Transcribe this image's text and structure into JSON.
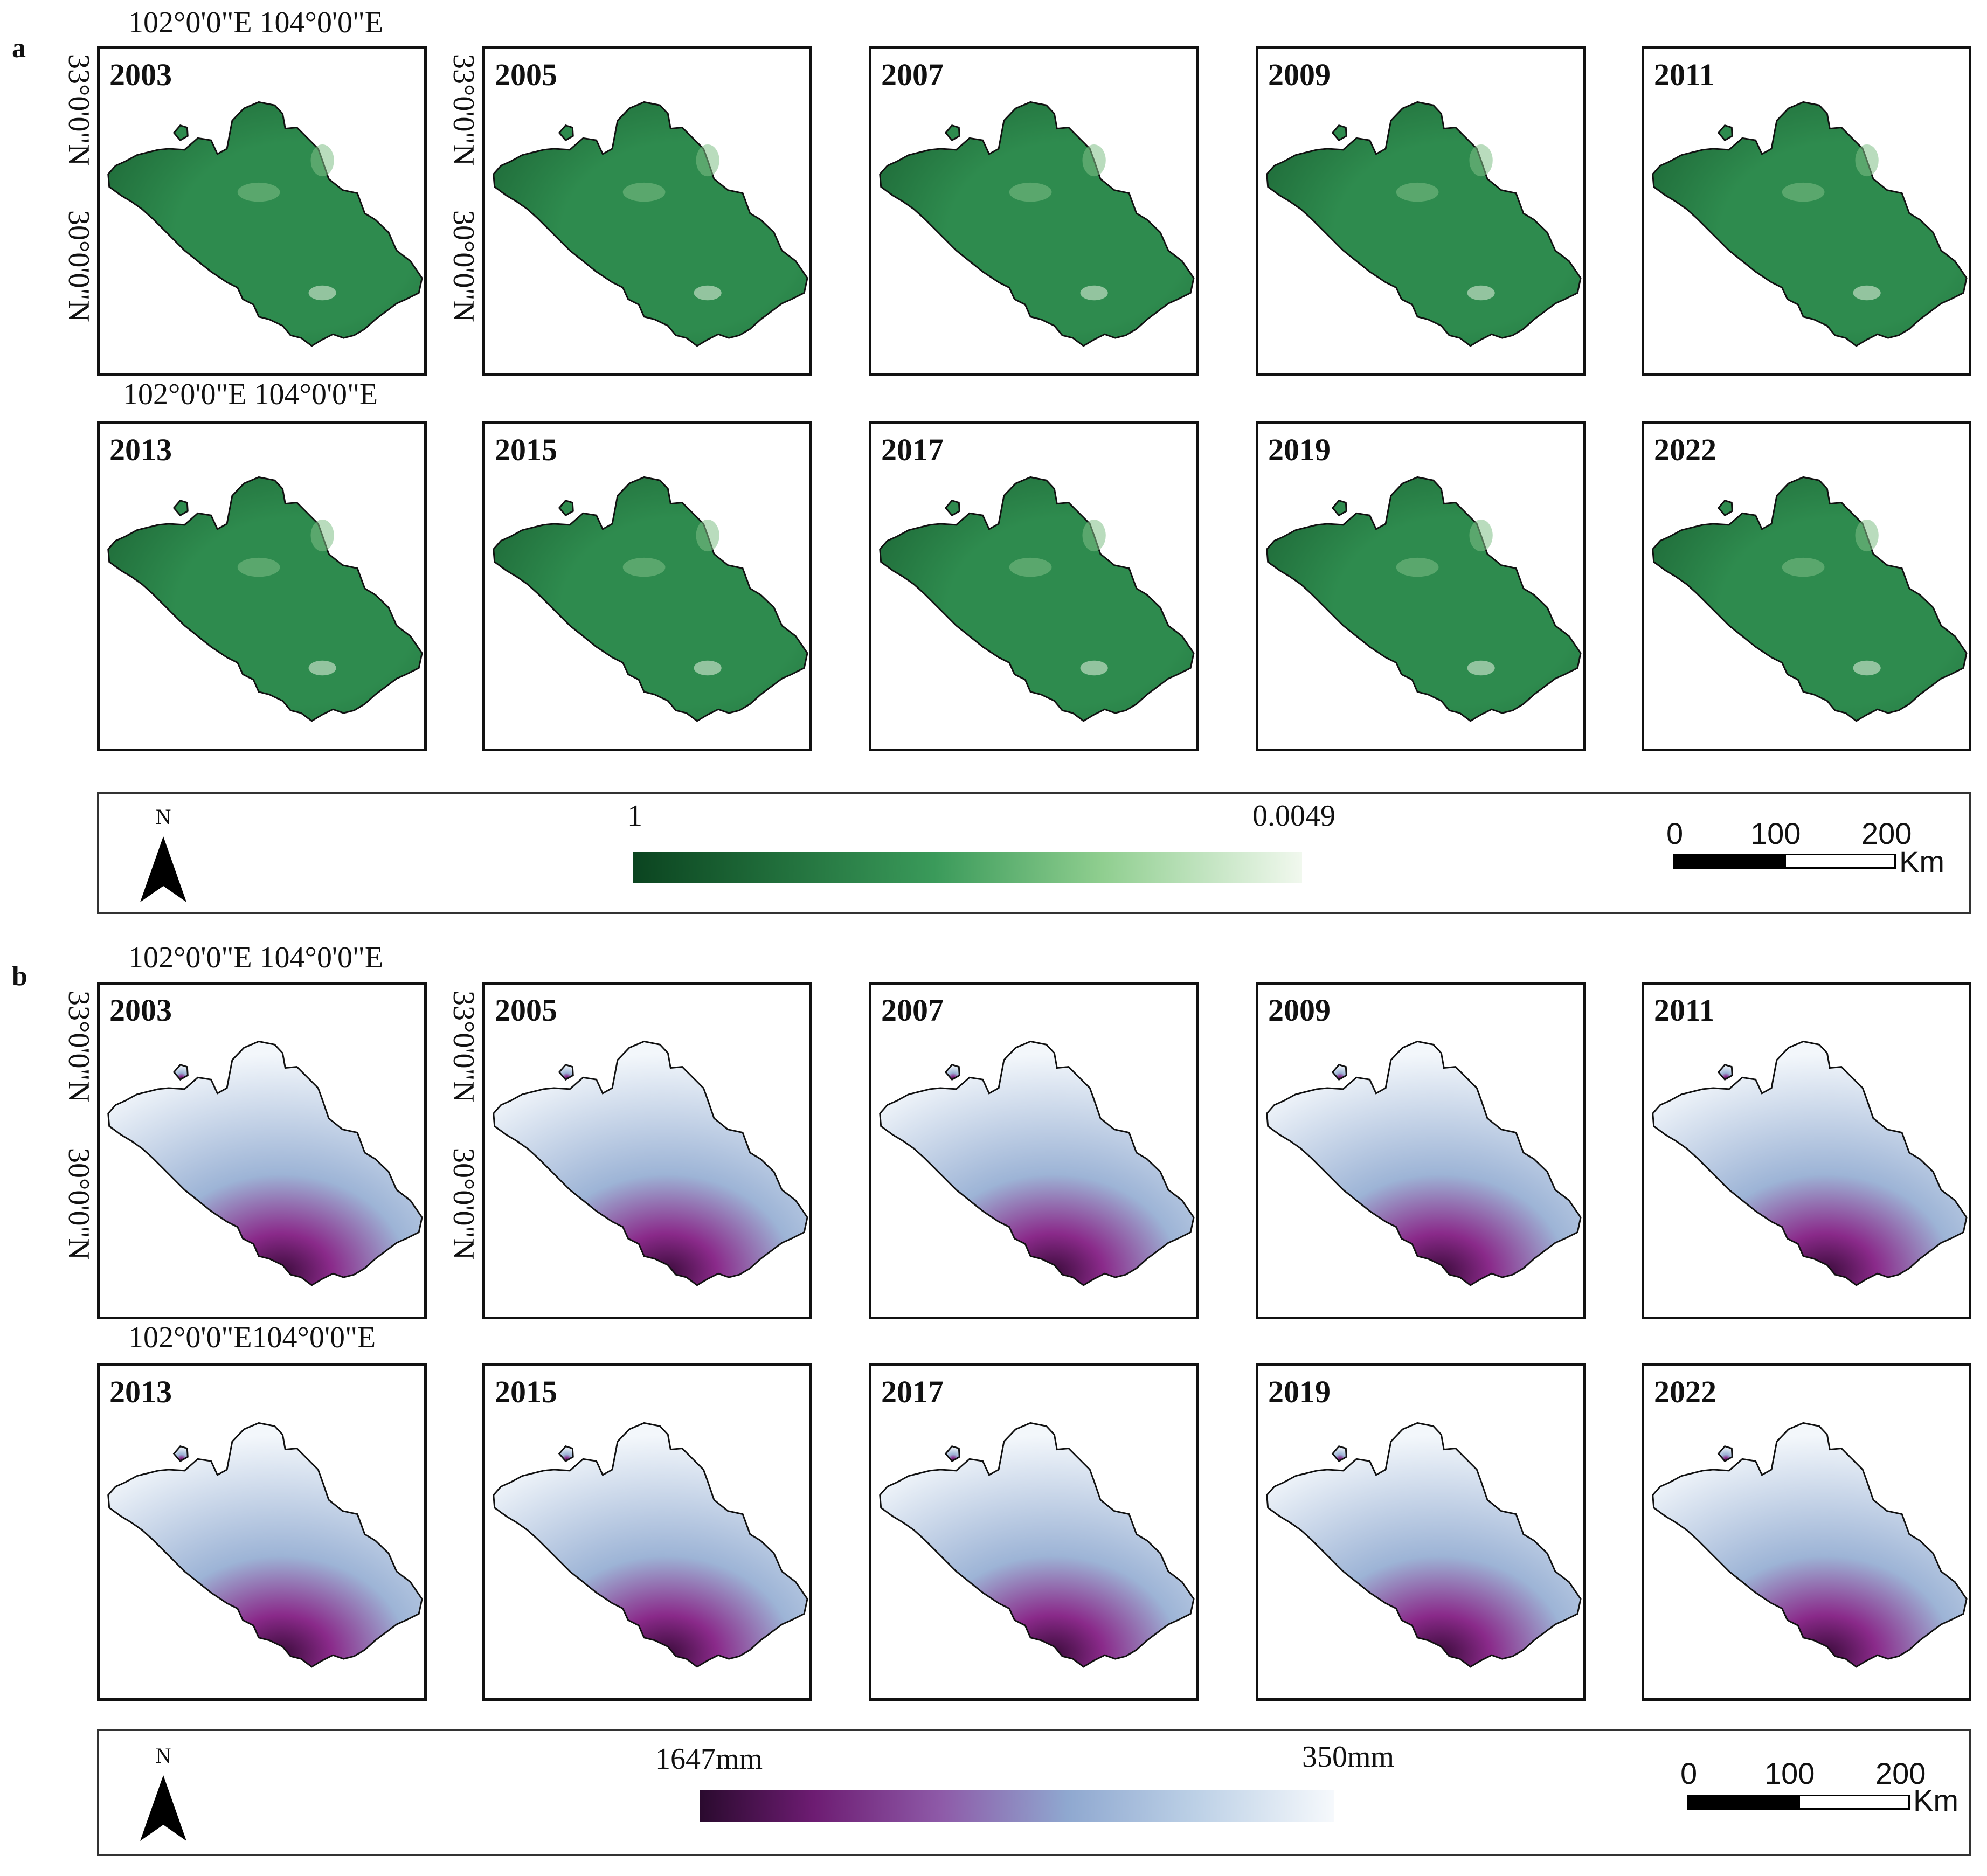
{
  "panels": [
    {
      "letter": "a",
      "top_coords": [
        "102°0'0\"E 104°0'0\"E",
        "102°0'0\"E 104°0'0\"E"
      ],
      "side_coords": [
        "33°0'0\"N",
        "30°0'0\"N"
      ],
      "rows": [
        [
          "2003",
          "2005",
          "2007",
          "2009",
          "2011"
        ],
        [
          "2013",
          "2015",
          "2017",
          "2019",
          "2022"
        ]
      ],
      "colors": {
        "dark": "#1f6b39",
        "mid": "#2e8b4e",
        "light": "#7fbf86",
        "pale": "#e8f4e2"
      },
      "legend": {
        "north": "N",
        "max_label": "1",
        "min_label": "0.0049",
        "scale_ticks": [
          "0",
          "100",
          "200"
        ],
        "scale_unit": "Km"
      }
    },
    {
      "letter": "b",
      "top_coords": [
        "102°0'0\"E 104°0'0\"E",
        "102°0'0\"E104°0'0\"E"
      ],
      "side_coords": [
        "33°0'0\"N",
        "30°0'0\"N"
      ],
      "rows": [
        [
          "2003",
          "2005",
          "2007",
          "2009",
          "2011"
        ],
        [
          "2013",
          "2015",
          "2017",
          "2019",
          "2022"
        ]
      ],
      "colors": {
        "dark": "#3a0b3a",
        "mid": "#8a2a8a",
        "light": "#9db4d6",
        "pale": "#f3f7fb"
      },
      "legend": {
        "north": "N",
        "max_label": "1647mm",
        "min_label": "350mm",
        "scale_ticks": [
          "0",
          "100",
          "200"
        ],
        "scale_unit": "Km"
      }
    }
  ]
}
